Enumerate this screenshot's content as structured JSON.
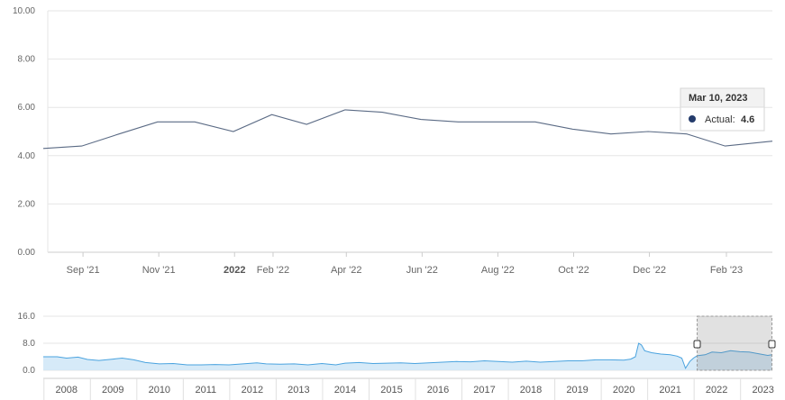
{
  "chart_data": [
    {
      "type": "line",
      "title": "",
      "xlabel": "",
      "ylabel": "",
      "ylim": [
        0,
        10
      ],
      "y_ticks": [
        "0.00",
        "2.00",
        "4.00",
        "6.00",
        "8.00",
        "10.00"
      ],
      "x_ticks": [
        {
          "date": "2021-09-01",
          "label": "Sep '21",
          "bold": false
        },
        {
          "date": "2021-11-01",
          "label": "Nov '21",
          "bold": false
        },
        {
          "date": "2022-01-01",
          "label": "2022",
          "bold": true
        },
        {
          "date": "2022-02-01",
          "label": "Feb '22",
          "bold": false
        },
        {
          "date": "2022-04-01",
          "label": "Apr '22",
          "bold": false
        },
        {
          "date": "2022-06-01",
          "label": "Jun '22",
          "bold": false
        },
        {
          "date": "2022-08-01",
          "label": "Aug '22",
          "bold": false
        },
        {
          "date": "2022-10-01",
          "label": "Oct '22",
          "bold": false
        },
        {
          "date": "2022-12-01",
          "label": "Dec '22",
          "bold": false
        },
        {
          "date": "2023-02-01",
          "label": "Feb '23",
          "bold": false
        }
      ],
      "x_range": [
        "2021-07-31",
        "2023-03-10"
      ],
      "grid": true,
      "series": [
        {
          "name": "Actual",
          "color": "#5b6b85",
          "points": [
            {
              "x": "2021-07-31",
              "y": 4.3
            },
            {
              "x": "2021-08-31",
              "y": 4.4
            },
            {
              "x": "2021-09-30",
              "y": 4.9
            },
            {
              "x": "2021-10-31",
              "y": 5.4
            },
            {
              "x": "2021-11-30",
              "y": 5.4
            },
            {
              "x": "2021-12-31",
              "y": 5.0
            },
            {
              "x": "2022-01-31",
              "y": 5.7
            },
            {
              "x": "2022-02-28",
              "y": 5.3
            },
            {
              "x": "2022-03-31",
              "y": 5.9
            },
            {
              "x": "2022-04-30",
              "y": 5.8
            },
            {
              "x": "2022-05-31",
              "y": 5.5
            },
            {
              "x": "2022-06-30",
              "y": 5.4
            },
            {
              "x": "2022-07-31",
              "y": 5.4
            },
            {
              "x": "2022-08-31",
              "y": 5.4
            },
            {
              "x": "2022-09-30",
              "y": 5.1
            },
            {
              "x": "2022-10-31",
              "y": 4.9
            },
            {
              "x": "2022-11-30",
              "y": 5.0
            },
            {
              "x": "2022-12-31",
              "y": 4.9
            },
            {
              "x": "2023-01-31",
              "y": 4.4
            },
            {
              "x": "2023-03-10",
              "y": 4.6
            }
          ]
        }
      ],
      "tooltip": {
        "date_label": "Mar 10, 2023",
        "series_label": "Actual:",
        "value_label": "4.6",
        "x": "2023-03-10",
        "y": 4.6
      }
    },
    {
      "type": "area",
      "role": "navigator",
      "ylim": [
        0,
        16
      ],
      "y_ticks": [
        "0.0",
        "8.0",
        "16.0"
      ],
      "x_ticks": [
        "2008",
        "2009",
        "2010",
        "2011",
        "2012",
        "2013",
        "2014",
        "2015",
        "2016",
        "2017",
        "2018",
        "2019",
        "2020",
        "2021",
        "2022",
        "2023"
      ],
      "x_range": [
        2007.5,
        2023.2
      ],
      "selected_range": [
        2021.58,
        2023.19
      ],
      "series": [
        {
          "name": "Actual",
          "color": "#4aa3df",
          "fill": "#cfe6f7",
          "points": [
            [
              2007.5,
              4.0
            ],
            [
              2007.8,
              4.0
            ],
            [
              2008.0,
              3.6
            ],
            [
              2008.25,
              3.9
            ],
            [
              2008.45,
              3.2
            ],
            [
              2008.7,
              2.9
            ],
            [
              2009.0,
              3.3
            ],
            [
              2009.2,
              3.6
            ],
            [
              2009.45,
              3.1
            ],
            [
              2009.7,
              2.3
            ],
            [
              2010.0,
              1.9
            ],
            [
              2010.3,
              2.0
            ],
            [
              2010.6,
              1.6
            ],
            [
              2010.9,
              1.6
            ],
            [
              2011.2,
              1.7
            ],
            [
              2011.5,
              1.6
            ],
            [
              2011.8,
              1.9
            ],
            [
              2012.1,
              2.2
            ],
            [
              2012.3,
              1.9
            ],
            [
              2012.6,
              1.8
            ],
            [
              2012.9,
              1.9
            ],
            [
              2013.2,
              1.6
            ],
            [
              2013.5,
              2.0
            ],
            [
              2013.8,
              1.6
            ],
            [
              2014.0,
              2.1
            ],
            [
              2014.3,
              2.3
            ],
            [
              2014.6,
              2.0
            ],
            [
              2014.9,
              2.1
            ],
            [
              2015.2,
              2.2
            ],
            [
              2015.5,
              2.0
            ],
            [
              2015.8,
              2.2
            ],
            [
              2016.1,
              2.4
            ],
            [
              2016.4,
              2.6
            ],
            [
              2016.7,
              2.5
            ],
            [
              2017.0,
              2.8
            ],
            [
              2017.3,
              2.6
            ],
            [
              2017.6,
              2.4
            ],
            [
              2017.9,
              2.7
            ],
            [
              2018.2,
              2.4
            ],
            [
              2018.5,
              2.6
            ],
            [
              2018.8,
              2.8
            ],
            [
              2019.1,
              2.8
            ],
            [
              2019.4,
              3.1
            ],
            [
              2019.7,
              3.1
            ],
            [
              2020.0,
              3.0
            ],
            [
              2020.15,
              3.3
            ],
            [
              2020.25,
              4.0
            ],
            [
              2020.32,
              8.0
            ],
            [
              2020.38,
              7.5
            ],
            [
              2020.45,
              5.8
            ],
            [
              2020.6,
              5.2
            ],
            [
              2020.8,
              4.8
            ],
            [
              2021.0,
              4.6
            ],
            [
              2021.15,
              4.2
            ],
            [
              2021.25,
              3.6
            ],
            [
              2021.33,
              0.6
            ],
            [
              2021.42,
              2.6
            ],
            [
              2021.5,
              3.6
            ],
            [
              2021.58,
              4.3
            ],
            [
              2021.75,
              4.6
            ],
            [
              2021.9,
              5.4
            ],
            [
              2022.1,
              5.2
            ],
            [
              2022.3,
              5.8
            ],
            [
              2022.5,
              5.5
            ],
            [
              2022.7,
              5.4
            ],
            [
              2022.9,
              4.9
            ],
            [
              2023.1,
              4.4
            ],
            [
              2023.19,
              4.6
            ]
          ]
        }
      ]
    }
  ]
}
